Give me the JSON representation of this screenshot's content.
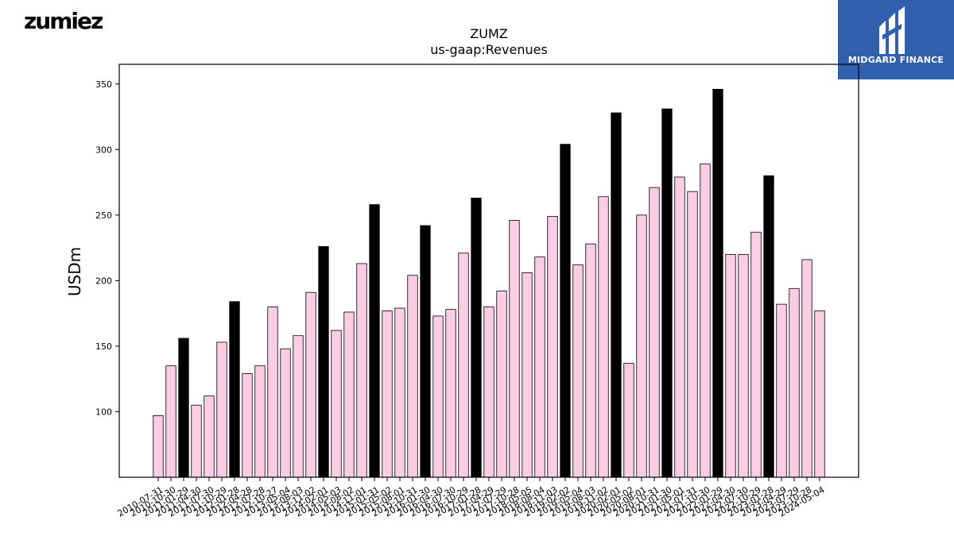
{
  "logos": {
    "left_text": "zumiez",
    "right_text": "MIDGARD FINANCE"
  },
  "colors": {
    "bar_q4": "#000000",
    "bar_other": "#fccce4",
    "logo_bg": "#2f5fad"
  },
  "chart_data": {
    "type": "bar",
    "title": "ZUMZ",
    "subtitle": "us-gaap:Revenues",
    "xlabel": "",
    "ylabel": "USDm",
    "ylim": [
      50,
      365
    ],
    "yticks": [
      100,
      150,
      200,
      250,
      300,
      350
    ],
    "grid": false,
    "categories": [
      "2010-07-31",
      "2010-10-30",
      "2011-01-29",
      "2011-04-30",
      "2011-07-30",
      "2011-10-29",
      "2012-01-28",
      "2012-04-28",
      "2012-07-28",
      "2012-10-27",
      "2013-05-04",
      "2013-08-03",
      "2013-11-02",
      "2014-02-01",
      "2014-05-03",
      "2014-08-02",
      "2014-11-01",
      "2015-01-31",
      "2015-05-02",
      "2015-08-01",
      "2015-10-31",
      "2016-01-30",
      "2016-04-30",
      "2016-07-30",
      "2016-10-29",
      "2017-01-28",
      "2017-04-29",
      "2017-07-29",
      "2017-10-28",
      "2018-05-05",
      "2018-08-04",
      "2018-11-03",
      "2019-02-02",
      "2019-05-04",
      "2019-08-03",
      "2019-11-02",
      "2020-02-01",
      "2020-05-02",
      "2020-08-01",
      "2020-10-31",
      "2021-01-30",
      "2021-05-01",
      "2021-07-31",
      "2021-10-30",
      "2022-01-29",
      "2022-04-30",
      "2022-07-30",
      "2022-10-29",
      "2023-01-28",
      "2023-04-29",
      "2023-07-29",
      "2023-10-28",
      "2024-05-04"
    ],
    "values": [
      97,
      135,
      156,
      105,
      112,
      153,
      184,
      129,
      135,
      180,
      148,
      158,
      191,
      226,
      162,
      176,
      213,
      258,
      177,
      179,
      204,
      242,
      173,
      178,
      221,
      263,
      180,
      192,
      246,
      206,
      218,
      249,
      304,
      212,
      228,
      264,
      328,
      137,
      250,
      271,
      331,
      279,
      268,
      289,
      346,
      220,
      220,
      237,
      280,
      182,
      194,
      216,
      177
    ],
    "highlight": [
      0,
      0,
      1,
      0,
      0,
      0,
      1,
      0,
      0,
      0,
      0,
      0,
      0,
      1,
      0,
      0,
      0,
      1,
      0,
      0,
      0,
      1,
      0,
      0,
      0,
      1,
      0,
      0,
      0,
      0,
      0,
      0,
      1,
      0,
      0,
      0,
      1,
      0,
      0,
      0,
      1,
      0,
      0,
      0,
      1,
      0,
      0,
      0,
      1,
      0,
      0,
      0,
      0
    ]
  }
}
